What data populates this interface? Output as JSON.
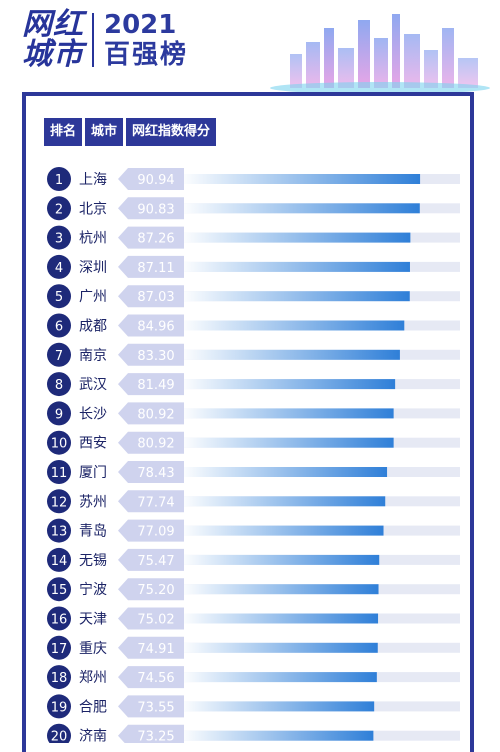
{
  "header": {
    "logo_text": "网红城市",
    "year": "2021",
    "subtitle": "百强榜"
  },
  "columns": [
    "排名",
    "城市",
    "网红指数得分"
  ],
  "colors": {
    "navy": "#2d3899",
    "badge": "#1e2a7a",
    "bar_light": "#e6e9f4",
    "bar_fill_start": "#ffffff",
    "bar_fill_end": "#2f7fd8",
    "label_bg": "#cfd3ee",
    "label_text": "#ffffff"
  },
  "chart_data": {
    "type": "bar",
    "orientation": "horizontal",
    "ranks": [
      1,
      2,
      3,
      4,
      5,
      6,
      7,
      8,
      9,
      10,
      11,
      12,
      13,
      14,
      15,
      16,
      17,
      18,
      19,
      20
    ],
    "categories": [
      "上海",
      "北京",
      "杭州",
      "深圳",
      "广州",
      "成都",
      "南京",
      "武汉",
      "长沙",
      "西安",
      "厦门",
      "苏州",
      "青岛",
      "无锡",
      "宁波",
      "天津",
      "重庆",
      "郑州",
      "合肥",
      "济南"
    ],
    "values": [
      "90.94",
      "90.83",
      "87.26",
      "87.11",
      "87.03",
      "84.96",
      "83.30",
      "81.49",
      "80.92",
      "80.92",
      "78.43",
      "77.74",
      "77.09",
      "75.47",
      "75.20",
      "75.02",
      "74.91",
      "74.56",
      "73.55",
      "73.25"
    ],
    "xlim": [
      0,
      100
    ]
  }
}
